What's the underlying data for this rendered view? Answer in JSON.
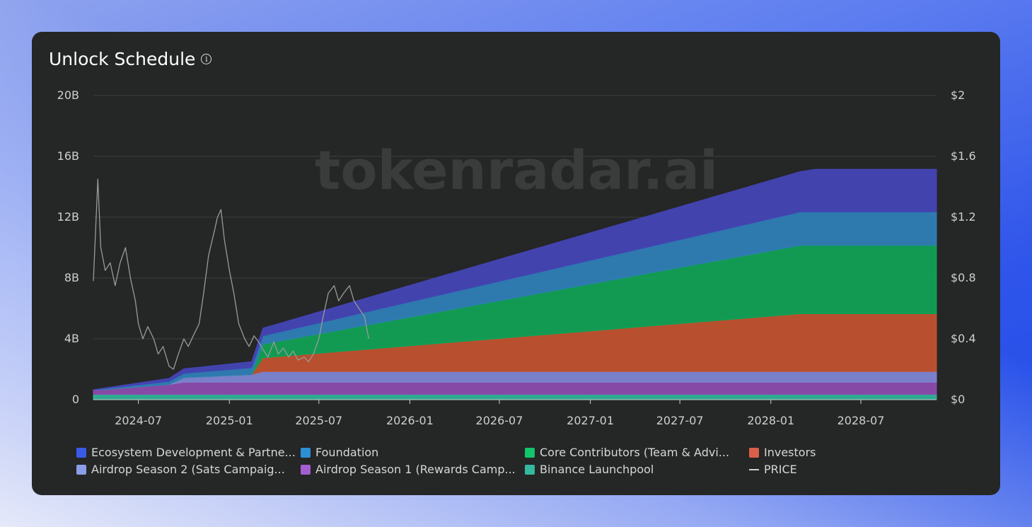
{
  "card": {
    "title": "Unlock Schedule"
  },
  "watermark": "tokenradar.ai",
  "chart_data": {
    "type": "area",
    "title": "Unlock Schedule",
    "stacked": true,
    "x_dates": [
      "2024-04-01",
      "2024-04-20",
      "2024-09-01",
      "2024-10-01",
      "2025-02-15",
      "2025-03-10",
      "2028-03-01",
      "2028-04-01",
      "2028-12-01"
    ],
    "series": [
      {
        "name": "Binance Launchpool",
        "color": "#2fb59a",
        "values": [
          0.35,
          0.35,
          0.35,
          0.35,
          0.35,
          0.35,
          0.35,
          0.35,
          0.35
        ]
      },
      {
        "name": "Airdrop Season 1 (Rewards Camp...",
        "color": "#8e4cb0",
        "values": [
          0.3,
          0.3,
          0.65,
          0.8,
          0.8,
          0.8,
          0.8,
          0.8,
          0.8
        ]
      },
      {
        "name": "Airdrop Season 2 (Sats Campaig...",
        "color": "#7f88d8",
        "values": [
          0,
          0,
          0,
          0.3,
          0.5,
          0.7,
          0.7,
          0.7,
          0.7
        ]
      },
      {
        "name": "Investors",
        "color": "#c4522f",
        "values": [
          0,
          0,
          0,
          0,
          0,
          0.9,
          3.8,
          3.8,
          3.8
        ]
      },
      {
        "name": "Core Contributors (Team & Advi...",
        "color": "#10a457",
        "values": [
          0,
          0,
          0,
          0,
          0,
          0.9,
          4.5,
          4.5,
          4.5
        ]
      },
      {
        "name": "Foundation",
        "color": "#2f80b8",
        "values": [
          0,
          0.05,
          0.2,
          0.28,
          0.45,
          0.55,
          2.2,
          2.2,
          2.2
        ]
      },
      {
        "name": "Ecosystem Development & Partne...",
        "color": "#4445b8",
        "values": [
          0,
          0.05,
          0.2,
          0.3,
          0.4,
          0.5,
          2.65,
          2.8,
          2.8
        ]
      }
    ],
    "price_series": {
      "name": "PRICE",
      "color": "#9a9a9a",
      "x_dates": [
        "2024-04-01",
        "2024-04-06",
        "2024-04-10",
        "2024-04-16",
        "2024-04-25",
        "2024-05-05",
        "2024-05-15",
        "2024-05-25",
        "2024-06-05",
        "2024-06-15",
        "2024-06-25",
        "2024-07-01",
        "2024-07-10",
        "2024-07-20",
        "2024-08-01",
        "2024-08-10",
        "2024-08-20",
        "2024-09-01",
        "2024-09-10",
        "2024-09-20",
        "2024-10-01",
        "2024-10-10",
        "2024-10-20",
        "2024-11-01",
        "2024-11-10",
        "2024-11-20",
        "2024-12-01",
        "2024-12-08",
        "2024-12-15",
        "2024-12-22",
        "2025-01-01",
        "2025-01-10",
        "2025-01-20",
        "2025-02-01",
        "2025-02-10",
        "2025-02-20",
        "2025-03-01",
        "2025-03-10",
        "2025-03-20",
        "2025-04-01",
        "2025-04-10",
        "2025-04-20",
        "2025-05-01",
        "2025-05-10",
        "2025-05-20",
        "2025-06-01",
        "2025-06-10",
        "2025-06-20",
        "2025-07-01",
        "2025-07-10",
        "2025-07-20",
        "2025-08-01",
        "2025-08-10",
        "2025-08-20",
        "2025-09-01",
        "2025-09-10",
        "2025-09-20",
        "2025-10-01",
        "2025-10-10"
      ],
      "values": [
        0.78,
        1.15,
        1.45,
        1.0,
        0.85,
        0.9,
        0.75,
        0.9,
        1.0,
        0.8,
        0.65,
        0.5,
        0.4,
        0.48,
        0.4,
        0.3,
        0.35,
        0.22,
        0.2,
        0.3,
        0.4,
        0.35,
        0.42,
        0.5,
        0.7,
        0.95,
        1.1,
        1.2,
        1.25,
        1.05,
        0.85,
        0.7,
        0.5,
        0.4,
        0.35,
        0.42,
        0.38,
        0.33,
        0.28,
        0.38,
        0.3,
        0.34,
        0.28,
        0.32,
        0.26,
        0.28,
        0.25,
        0.3,
        0.4,
        0.55,
        0.7,
        0.75,
        0.65,
        0.7,
        0.75,
        0.65,
        0.6,
        0.55,
        0.4
      ]
    },
    "xlim": [
      "2024-04-01",
      "2028-12-01"
    ],
    "x_ticks": [
      "2024-07",
      "2025-01",
      "2025-07",
      "2026-01",
      "2026-07",
      "2027-01",
      "2027-07",
      "2028-01",
      "2028-07"
    ],
    "y_ticks_left": [
      "0",
      "4B",
      "8B",
      "12B",
      "16B",
      "20B"
    ],
    "y_ticks_right": [
      "$0",
      "$0.4",
      "$0.8",
      "$1.2",
      "$1.6",
      "$2"
    ],
    "ylim_left": [
      0,
      20
    ],
    "ylim_right": [
      0,
      2
    ],
    "ylabel_left_unit": "B",
    "legend_placement": "bottom",
    "grid": true
  },
  "legend": [
    {
      "label": "Ecosystem Development & Partne...",
      "color": "#3a5ae8",
      "kind": "box"
    },
    {
      "label": "Foundation",
      "color": "#2d8fd6",
      "kind": "box"
    },
    {
      "label": "Core Contributors (Team & Advi...",
      "color": "#12c46a",
      "kind": "box"
    },
    {
      "label": "Investors",
      "color": "#d9604a",
      "kind": "box"
    },
    {
      "label": "Airdrop Season 2 (Sats Campaig...",
      "color": "#8c9ce8",
      "kind": "box"
    },
    {
      "label": "Airdrop Season 1 (Rewards Camp...",
      "color": "#a35fd0",
      "kind": "box"
    },
    {
      "label": "Binance Launchpool",
      "color": "#35b8a0",
      "kind": "box"
    },
    {
      "label": "PRICE",
      "color": "#cfcfcf",
      "kind": "line"
    }
  ]
}
